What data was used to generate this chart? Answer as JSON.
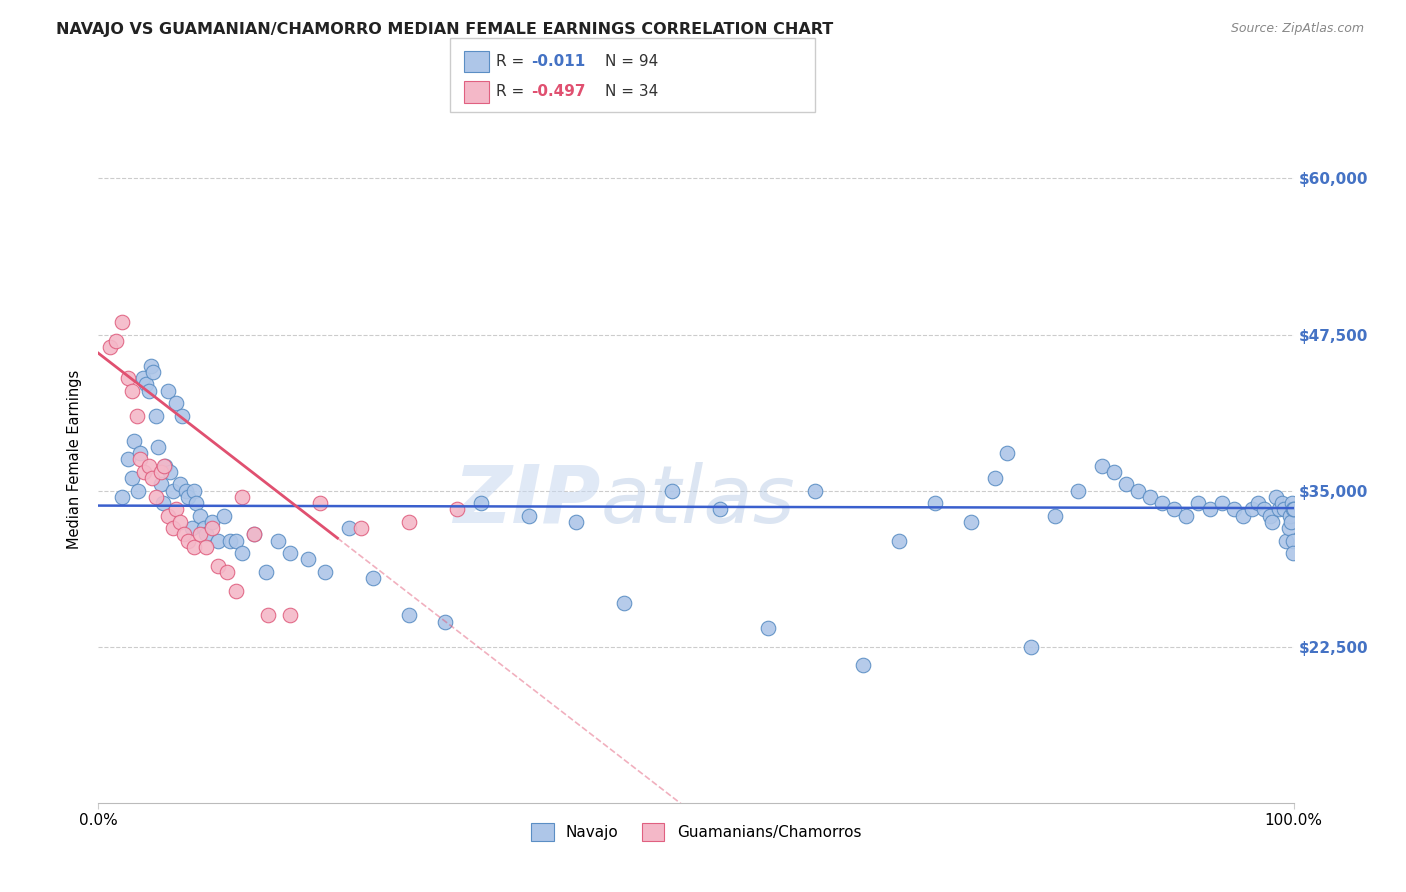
{
  "title": "NAVAJO VS GUAMANIAN/CHAMORRO MEDIAN FEMALE EARNINGS CORRELATION CHART",
  "source": "Source: ZipAtlas.com",
  "ylabel": "Median Female Earnings",
  "xlim": [
    0.0,
    1.0
  ],
  "ylim": [
    10000,
    65000
  ],
  "ytick_vals": [
    22500,
    35000,
    47500,
    60000
  ],
  "ytick_labels": [
    "$22,500",
    "$35,000",
    "$47,500",
    "$60,000"
  ],
  "xtick_vals": [
    0.0,
    1.0
  ],
  "xtick_labels": [
    "0.0%",
    "100.0%"
  ],
  "navajo_color": "#aec6e8",
  "navajo_edge": "#5b8ec4",
  "guamanian_color": "#f4b8c8",
  "guamanian_edge": "#e06080",
  "trend_navajo_color": "#3a5fcd",
  "trend_guamanian_color": "#e05070",
  "grid_color": "#cccccc",
  "navajo_x": [
    0.02,
    0.025,
    0.028,
    0.03,
    0.033,
    0.035,
    0.037,
    0.04,
    0.042,
    0.044,
    0.046,
    0.048,
    0.05,
    0.052,
    0.054,
    0.056,
    0.058,
    0.06,
    0.062,
    0.065,
    0.068,
    0.07,
    0.073,
    0.075,
    0.078,
    0.08,
    0.082,
    0.085,
    0.088,
    0.09,
    0.095,
    0.1,
    0.105,
    0.11,
    0.115,
    0.12,
    0.13,
    0.14,
    0.15,
    0.16,
    0.175,
    0.19,
    0.21,
    0.23,
    0.26,
    0.29,
    0.32,
    0.36,
    0.4,
    0.44,
    0.48,
    0.52,
    0.56,
    0.6,
    0.64,
    0.67,
    0.7,
    0.73,
    0.75,
    0.76,
    0.78,
    0.8,
    0.82,
    0.84,
    0.85,
    0.86,
    0.87,
    0.88,
    0.89,
    0.9,
    0.91,
    0.92,
    0.93,
    0.94,
    0.95,
    0.958,
    0.965,
    0.97,
    0.975,
    0.98,
    0.982,
    0.985,
    0.988,
    0.99,
    0.992,
    0.994,
    0.996,
    0.997,
    0.998,
    0.999,
    0.9992,
    0.9995,
    0.9997,
    1.0
  ],
  "navajo_y": [
    34500,
    37500,
    36000,
    39000,
    35000,
    38000,
    44000,
    43500,
    43000,
    45000,
    44500,
    41000,
    38500,
    35500,
    34000,
    37000,
    43000,
    36500,
    35000,
    42000,
    35500,
    41000,
    35000,
    34500,
    32000,
    35000,
    34000,
    33000,
    32000,
    31500,
    32500,
    31000,
    33000,
    31000,
    31000,
    30000,
    31500,
    28500,
    31000,
    30000,
    29500,
    28500,
    32000,
    28000,
    25000,
    24500,
    34000,
    33000,
    32500,
    26000,
    35000,
    33500,
    24000,
    35000,
    21000,
    31000,
    34000,
    32500,
    36000,
    38000,
    22500,
    33000,
    35000,
    37000,
    36500,
    35500,
    35000,
    34500,
    34000,
    33500,
    33000,
    34000,
    33500,
    34000,
    33500,
    33000,
    33500,
    34000,
    33500,
    33000,
    32500,
    34500,
    33500,
    34000,
    33500,
    31000,
    32000,
    33000,
    32500,
    34000,
    33500,
    31000,
    30000,
    33500
  ],
  "guamanian_x": [
    0.01,
    0.015,
    0.02,
    0.025,
    0.028,
    0.032,
    0.035,
    0.038,
    0.042,
    0.045,
    0.048,
    0.052,
    0.055,
    0.058,
    0.062,
    0.065,
    0.068,
    0.072,
    0.075,
    0.08,
    0.085,
    0.09,
    0.095,
    0.1,
    0.108,
    0.115,
    0.12,
    0.13,
    0.142,
    0.16,
    0.185,
    0.22,
    0.26,
    0.3
  ],
  "guamanian_y": [
    46500,
    47000,
    48500,
    44000,
    43000,
    41000,
    37500,
    36500,
    37000,
    36000,
    34500,
    36500,
    37000,
    33000,
    32000,
    33500,
    32500,
    31500,
    31000,
    30500,
    31500,
    30500,
    32000,
    29000,
    28500,
    27000,
    34500,
    31500,
    25000,
    25000,
    34000,
    32000,
    32500,
    33500
  ]
}
